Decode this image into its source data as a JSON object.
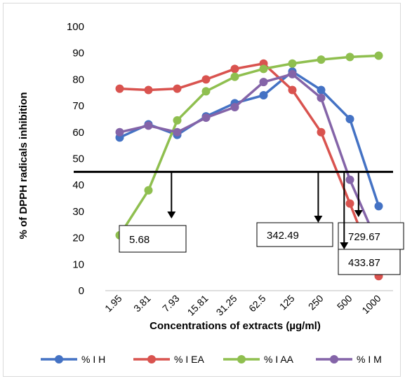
{
  "chart_data": {
    "type": "line",
    "title": "",
    "xlabel": "Concentrations of extracts (µg/ml)",
    "ylabel": "% of DPPH radicals inhibition",
    "categories": [
      "1.95",
      "3.81",
      "7.93",
      "15.81",
      "31.25",
      "62.5",
      "125",
      "250",
      "500",
      "1000"
    ],
    "yticks": [
      0,
      10,
      20,
      30,
      40,
      50,
      60,
      70,
      80,
      90,
      100
    ],
    "ylim": [
      0,
      100
    ],
    "grid": false,
    "legend_position": "bottom",
    "threshold_y": 45,
    "series": [
      {
        "name": "% I H",
        "color": "#4472c4",
        "values": [
          58,
          63,
          59,
          66,
          71,
          74,
          83,
          76,
          65,
          32
        ]
      },
      {
        "name": "% I EA",
        "color": "#d9534f",
        "values": [
          76.5,
          76,
          76.5,
          80,
          84,
          86,
          76,
          60,
          33,
          5.5
        ]
      },
      {
        "name": "% I AA",
        "color": "#8fbf4f",
        "values": [
          21,
          38,
          64.5,
          75.5,
          81,
          84,
          86,
          87.5,
          88.5,
          89
        ]
      },
      {
        "name": "% I M",
        "color": "#8464a8",
        "values": [
          60,
          62.5,
          60,
          65.5,
          69.5,
          79,
          82,
          73,
          42,
          17
        ]
      }
    ],
    "annotations": [
      {
        "text": "5.68",
        "x_category_pos": 2.3
      },
      {
        "text": "342.49",
        "x_category_pos": 7.4
      },
      {
        "text": "729.67",
        "x_category_pos": 8.8
      },
      {
        "text": "433.87",
        "x_category_pos": 8.3
      }
    ]
  }
}
